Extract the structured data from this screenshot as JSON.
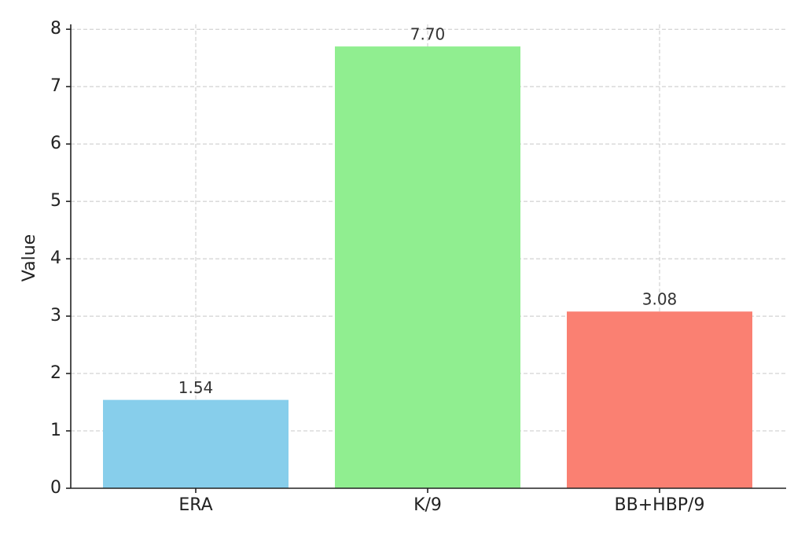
{
  "chart_data": {
    "type": "bar",
    "y_label": "Value",
    "categories": [
      "ERA",
      "K/9",
      "BB+HBP/9"
    ],
    "values": [
      1.54,
      7.7,
      3.08
    ],
    "value_labels": [
      "1.54",
      "7.70",
      "3.08"
    ],
    "colors": [
      "#87ceeb",
      "#90ee90",
      "#fa8072"
    ],
    "ylim": [
      0,
      8.085
    ],
    "yticks": [
      0,
      1,
      2,
      3,
      4,
      5,
      6,
      7,
      8
    ],
    "grid": true
  }
}
